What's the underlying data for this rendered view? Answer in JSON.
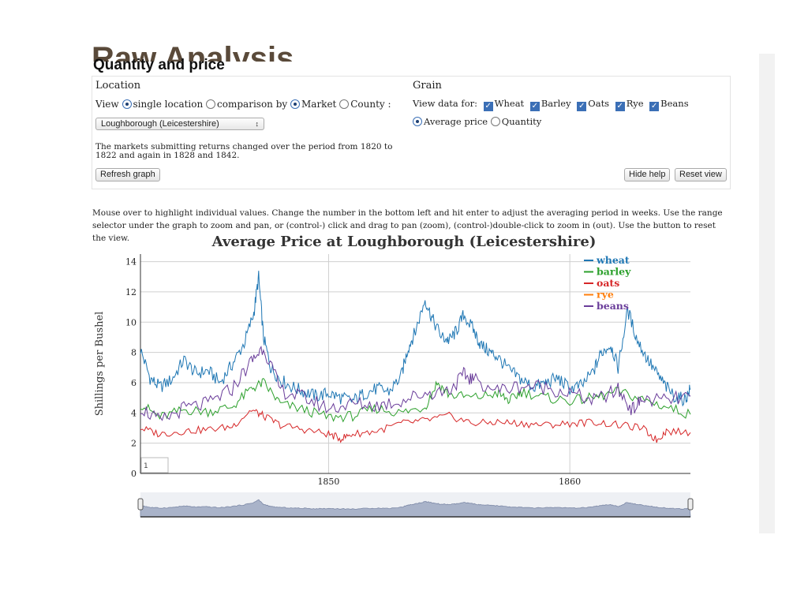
{
  "page": {
    "ghost_title": "Raw Analysis",
    "title": "Quantity and price"
  },
  "location": {
    "heading": "Location",
    "view_label": "View",
    "option_single": "single location",
    "option_comparison": "comparison by",
    "option_market": "Market",
    "option_county": "County :",
    "selected_market": "Loughborough (Leicestershire)",
    "note": "The markets submitting returns changed over the period from 1820 to 1822 and again in 1828 and 1842.",
    "refresh_button": "Refresh graph"
  },
  "grain": {
    "heading": "Grain",
    "view_data_label": "View data for:",
    "checkboxes": [
      "Wheat",
      "Barley",
      "Oats",
      "Rye",
      "Beans"
    ],
    "mode_average": "Average price",
    "mode_quantity": "Quantity"
  },
  "buttons": {
    "hide_help": "Hide help",
    "reset_view": "Reset view"
  },
  "help_text": "Mouse over to highlight individual values. Change the number in the bottom left and hit enter to adjust the averaging period in weeks. Use the range selector under the graph to zoom and pan, or (control-) click and drag to pan (zoom), (control-)double-click to zoom in (out). Use the button to reset the view.",
  "roll_period": "1",
  "colors": {
    "wheat": "#1f77b4",
    "barley": "#2ca02c",
    "oats": "#d62728",
    "rye": "#ff7f0e",
    "beans": "#6a3d9a",
    "selector_fill": "#a9b3c9"
  },
  "chart_data": {
    "type": "line",
    "title": "Average Price at Loughborough (Leicestershire)",
    "ylabel": "Shillings per Bushel",
    "xlabel": "",
    "xlim": [
      1842.2,
      1865.0
    ],
    "ylim": [
      0,
      14.5
    ],
    "yticks": [
      0,
      2,
      4,
      6,
      8,
      10,
      12,
      14
    ],
    "xticks": [
      1850,
      1860
    ],
    "grid": true,
    "legend_position": "top-right",
    "series": [
      {
        "name": "wheat",
        "x": [
          1842.2,
          1842.6,
          1843.0,
          1843.5,
          1844.0,
          1844.5,
          1845.0,
          1845.5,
          1846.0,
          1846.5,
          1846.9,
          1847.1,
          1847.3,
          1847.6,
          1848.0,
          1848.5,
          1849.0,
          1849.5,
          1850.0,
          1850.5,
          1851.0,
          1851.5,
          1852.0,
          1852.5,
          1853.0,
          1853.3,
          1853.6,
          1854.0,
          1854.3,
          1854.7,
          1855.0,
          1855.3,
          1855.6,
          1856.0,
          1856.3,
          1856.7,
          1857.0,
          1857.5,
          1858.0,
          1858.5,
          1859.0,
          1859.5,
          1860.0,
          1860.5,
          1861.0,
          1861.3,
          1861.7,
          1862.0,
          1862.4,
          1862.8,
          1863.2,
          1863.6,
          1864.0,
          1864.4,
          1864.8,
          1865.0
        ],
        "y": [
          8.2,
          6.3,
          5.7,
          6.2,
          7.5,
          6.6,
          6.8,
          6.0,
          7.2,
          8.6,
          10.6,
          13.0,
          9.0,
          7.0,
          6.2,
          5.7,
          5.4,
          5.1,
          5.3,
          5.0,
          4.8,
          5.3,
          5.6,
          5.4,
          6.4,
          8.3,
          9.4,
          11.5,
          10.2,
          9.0,
          8.8,
          9.4,
          10.5,
          9.5,
          8.5,
          8.0,
          7.7,
          6.8,
          6.2,
          5.7,
          6.0,
          6.3,
          5.6,
          5.8,
          6.8,
          8.0,
          8.5,
          7.0,
          10.8,
          8.8,
          7.6,
          6.6,
          5.7,
          5.0,
          4.9,
          5.6
        ]
      },
      {
        "name": "barley",
        "x": [
          1842.2,
          1843.0,
          1844.0,
          1845.0,
          1846.0,
          1846.8,
          1847.3,
          1848.0,
          1849.0,
          1850.0,
          1851.0,
          1852.0,
          1853.0,
          1854.0,
          1854.5,
          1855.0,
          1856.0,
          1857.0,
          1857.5,
          1858.0,
          1859.0,
          1860.0,
          1861.0,
          1862.0,
          1863.0,
          1864.0,
          1865.0
        ],
        "y": [
          4.6,
          3.7,
          4.2,
          4.1,
          4.4,
          5.6,
          6.0,
          4.6,
          4.2,
          3.7,
          3.8,
          4.3,
          4.0,
          4.4,
          6.0,
          5.2,
          5.0,
          5.3,
          4.8,
          5.4,
          5.0,
          4.8,
          5.0,
          5.4,
          4.9,
          4.4,
          3.9
        ]
      },
      {
        "name": "oats",
        "x": [
          1842.2,
          1843.0,
          1844.0,
          1845.0,
          1846.0,
          1846.8,
          1847.3,
          1848.0,
          1849.0,
          1850.0,
          1850.5,
          1851.0,
          1852.0,
          1853.0,
          1854.0,
          1855.0,
          1856.0,
          1857.0,
          1858.0,
          1859.0,
          1860.0,
          1861.0,
          1862.0,
          1863.0,
          1863.6,
          1864.0,
          1865.0
        ],
        "y": [
          3.0,
          2.6,
          2.8,
          2.9,
          3.1,
          4.2,
          3.8,
          3.2,
          2.9,
          2.6,
          2.3,
          2.6,
          2.8,
          3.3,
          3.5,
          3.8,
          3.3,
          3.4,
          3.3,
          3.2,
          3.3,
          3.4,
          3.2,
          3.0,
          2.2,
          2.8,
          2.7
        ]
      },
      {
        "name": "rye",
        "x": [],
        "y": []
      },
      {
        "name": "beans",
        "x": [
          1842.2,
          1843.0,
          1844.0,
          1845.0,
          1846.0,
          1846.8,
          1847.3,
          1848.0,
          1849.0,
          1850.0,
          1851.0,
          1852.0,
          1853.0,
          1854.0,
          1855.0,
          1855.6,
          1856.0,
          1857.0,
          1858.0,
          1859.0,
          1860.0,
          1861.0,
          1862.0,
          1862.6,
          1863.0,
          1864.0,
          1865.0
        ],
        "y": [
          4.4,
          3.4,
          4.3,
          4.6,
          5.6,
          7.4,
          8.4,
          5.5,
          5.0,
          4.3,
          4.6,
          4.5,
          4.8,
          5.3,
          5.5,
          6.5,
          6.2,
          5.5,
          5.8,
          5.7,
          5.3,
          4.8,
          5.5,
          4.2,
          4.9,
          4.8,
          5.1
        ]
      }
    ]
  }
}
